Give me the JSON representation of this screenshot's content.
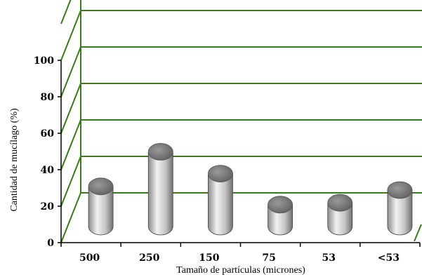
{
  "chart_data": {
    "type": "bar",
    "xlabel": "Tamaño de partículas (micrones)",
    "ylabel": "Cantidad de mucílago (%)",
    "categories": [
      "500",
      "250",
      "150",
      "75",
      "53",
      "<53"
    ],
    "values": [
      22,
      41,
      29,
      12,
      13,
      20
    ],
    "ylim": [
      0,
      100
    ],
    "yticks": [
      0,
      20,
      40,
      60,
      80,
      100
    ],
    "grid": true,
    "legend": "none",
    "colors": {
      "grid": "#3a7a1e",
      "axis": "#000000",
      "bar_light": "#e6e6e6",
      "bar_dark": "#7d7d7d",
      "bar_top": "#8f8f8f"
    }
  }
}
